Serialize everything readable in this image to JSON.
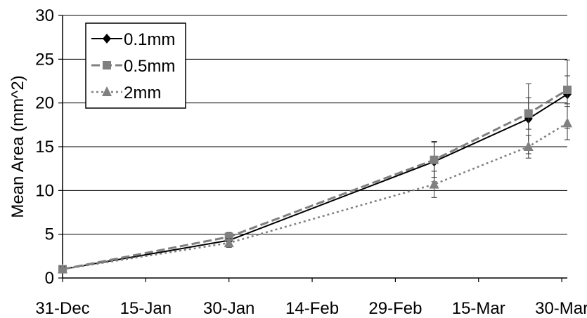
{
  "chart_data": {
    "type": "line",
    "title": "",
    "xlabel": "",
    "ylabel": "Mean Area (mm^2)",
    "x_tick_labels": [
      "31-Dec",
      "15-Jan",
      "30-Jan",
      "14-Feb",
      "29-Feb",
      "15-Mar",
      "30-Mar"
    ],
    "x_ticks": [
      "2007-12-31",
      "2008-01-15",
      "2008-01-30",
      "2008-02-14",
      "2008-02-29",
      "2008-03-15",
      "2008-03-30"
    ],
    "xlim": [
      "2007-12-31",
      "2008-03-31"
    ],
    "ylim": [
      0,
      30
    ],
    "y_ticks": [
      0,
      5,
      10,
      15,
      20,
      25,
      30
    ],
    "grid": "horizontal",
    "legend_position": "top-left",
    "error_bars": true,
    "series": [
      {
        "name": "0.1mm",
        "marker": "diamond",
        "line_style": "solid",
        "color": "#000000",
        "x": [
          "2007-12-31",
          "2008-01-30",
          "2008-03-07",
          "2008-03-24",
          "2008-03-31"
        ],
        "y": [
          1.0,
          4.3,
          13.3,
          18.2,
          21.0
        ],
        "error": [
          0.4,
          0.6,
          2.3,
          4.0,
          3.9
        ]
      },
      {
        "name": "0.5mm",
        "marker": "square",
        "line_style": "dashed",
        "color": "#808080",
        "x": [
          "2007-12-31",
          "2008-01-30",
          "2008-03-07",
          "2008-03-24",
          "2008-03-31"
        ],
        "y": [
          1.0,
          4.7,
          13.5,
          18.8,
          21.5
        ],
        "error": [
          0.3,
          0.5,
          2.0,
          1.8,
          1.6
        ]
      },
      {
        "name": "2mm",
        "marker": "triangle",
        "line_style": "dotted",
        "color": "#808080",
        "x": [
          "2007-12-31",
          "2008-01-30",
          "2008-03-07",
          "2008-03-24",
          "2008-03-31"
        ],
        "y": [
          1.0,
          4.0,
          10.7,
          15.0,
          17.7
        ],
        "error": [
          0.3,
          0.5,
          1.5,
          1.3,
          1.9
        ]
      }
    ]
  }
}
